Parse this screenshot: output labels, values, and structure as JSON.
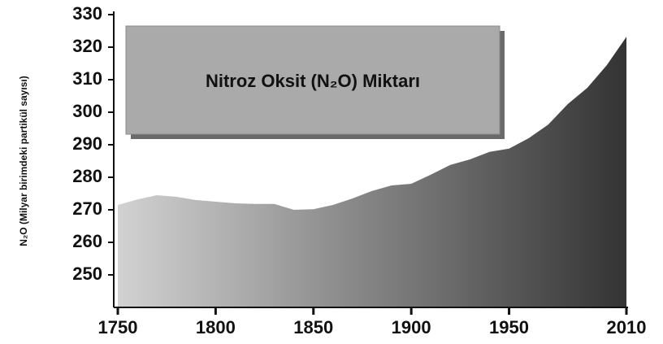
{
  "chart_data": {
    "type": "area",
    "title": "Nitroz Oksit (N₂O) Miktarı",
    "y_label": "N₂O (Milyar birimdeki partikül sayısı)",
    "x": [
      1750,
      1760,
      1770,
      1780,
      1790,
      1800,
      1810,
      1820,
      1830,
      1840,
      1850,
      1860,
      1870,
      1880,
      1890,
      1900,
      1910,
      1920,
      1930,
      1940,
      1950,
      1960,
      1970,
      1980,
      1990,
      2000,
      2010
    ],
    "values": [
      271.5,
      273.2,
      274.5,
      274,
      273,
      272.5,
      272,
      271.8,
      271.8,
      270,
      270.2,
      271.5,
      273.5,
      275.8,
      277.5,
      278,
      280.8,
      283.8,
      285.5,
      287.8,
      288.8,
      292,
      296.2,
      302.5,
      307.5,
      314.5,
      323.2
    ],
    "color_start": "#d2d2d2",
    "color_end": "#333333",
    "xlim": [
      1750,
      2010
    ],
    "xticks": [
      1750,
      1800,
      1850,
      1900,
      1950,
      2010
    ],
    "ylim": [
      240,
      330
    ],
    "yticks": [
      250,
      260,
      270,
      280,
      290,
      300,
      310,
      320,
      330
    ]
  }
}
